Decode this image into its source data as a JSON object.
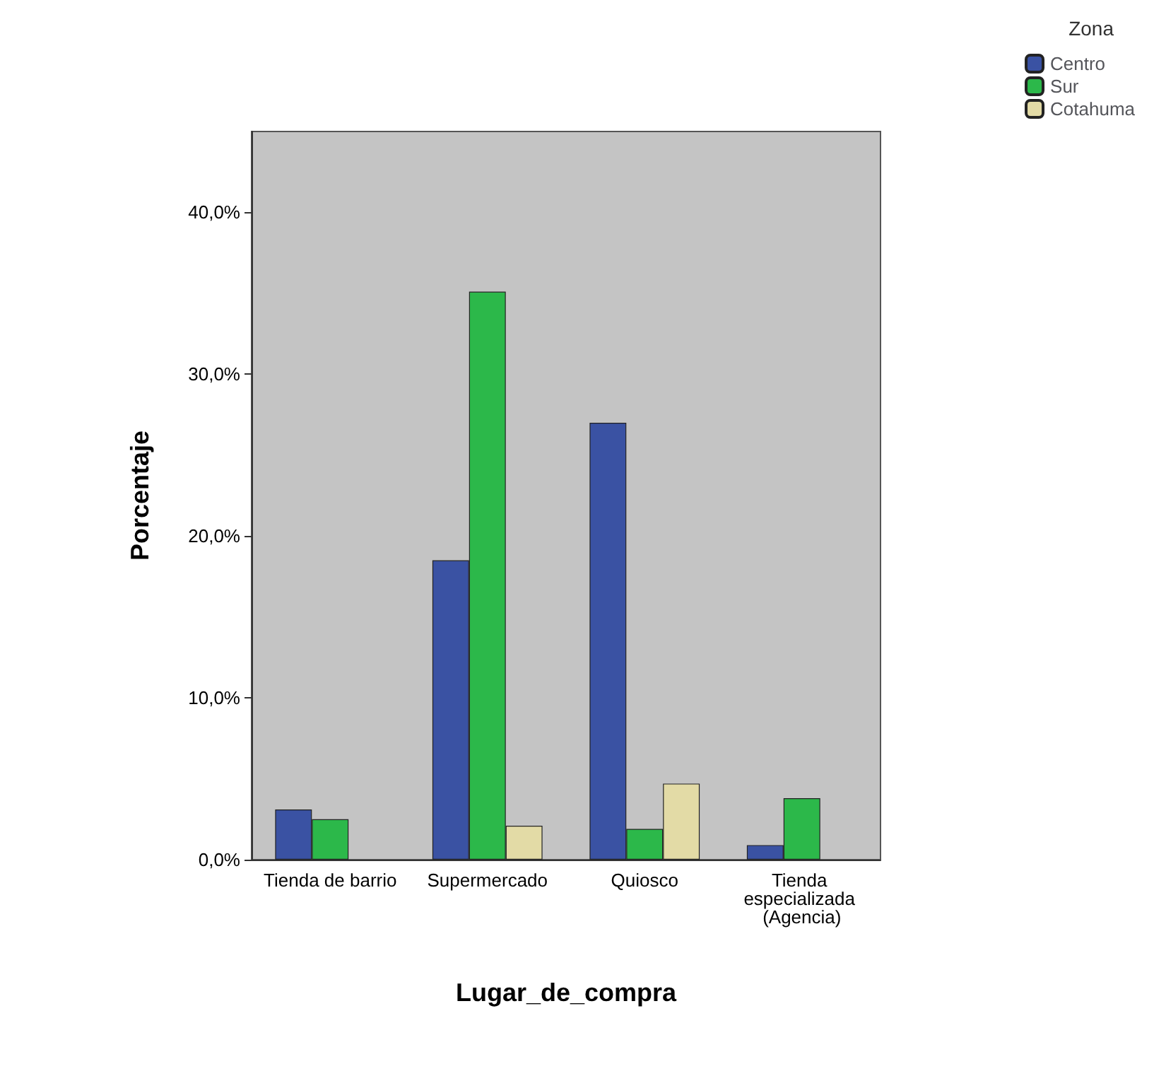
{
  "chart_data": {
    "type": "bar",
    "xlabel": "Lugar_de_compra",
    "ylabel": "Porcentaje",
    "legend_title": "Zona",
    "legend": "top right",
    "categories": [
      "Tienda de barrio",
      "Supermercado",
      "Quiosco",
      "Tienda especializada (Agencia)"
    ],
    "series": [
      {
        "name": "Centro",
        "color": "#3a52a3",
        "values": [
          3.1,
          18.5,
          27.0,
          0.9
        ]
      },
      {
        "name": "Sur",
        "color": "#2cb84a",
        "values": [
          2.5,
          35.1,
          1.9,
          3.8
        ]
      },
      {
        "name": "Cotahuma",
        "color": "#e3dba6",
        "values": [
          null,
          2.1,
          4.7,
          null
        ]
      }
    ],
    "ylim": [
      0,
      45
    ],
    "yticks": [
      {
        "value": 0,
        "label": "0,0%"
      },
      {
        "value": 10,
        "label": "10,0%"
      },
      {
        "value": 20,
        "label": "20,0%"
      },
      {
        "value": 30,
        "label": "30,0%"
      },
      {
        "value": 40,
        "label": "40,0%"
      }
    ],
    "grid": false
  }
}
